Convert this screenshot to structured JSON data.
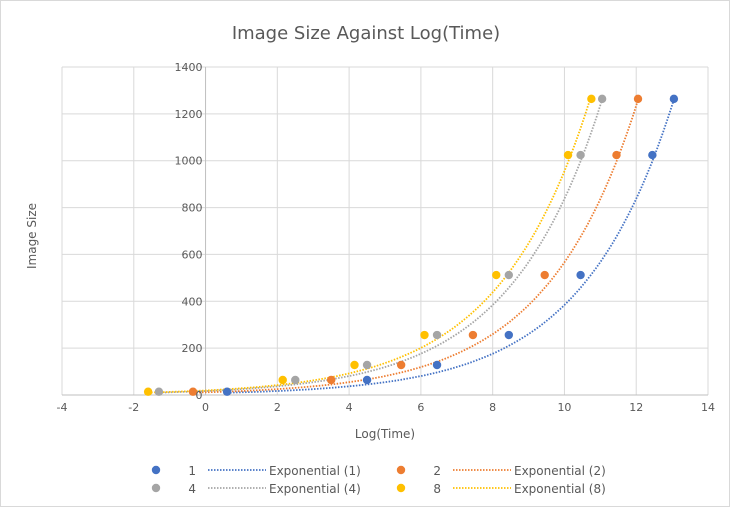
{
  "chart_data": {
    "type": "scatter",
    "title": "Image Size Against Log(Time)",
    "xlabel": "Log(Time)",
    "ylabel": "Image Size",
    "xlim": [
      -4,
      14
    ],
    "ylim": [
      0,
      1400
    ],
    "xticks": [
      -4,
      -2,
      0,
      2,
      4,
      6,
      8,
      10,
      12,
      14
    ],
    "yticks": [
      0,
      200,
      400,
      600,
      800,
      1000,
      1200,
      1400
    ],
    "grid": true,
    "legend_position": "bottom",
    "series": [
      {
        "name": "1",
        "color": "#4472c4",
        "x": [
          0.6,
          4.5,
          6.45,
          8.45,
          10.45,
          12.45,
          13.05
        ],
        "y": [
          14,
          64,
          128,
          256,
          512,
          1024,
          1264
        ],
        "trendline": {
          "name": "Exponential (1)",
          "type": "exponential",
          "a": 7.8,
          "b": 0.3897
        }
      },
      {
        "name": "2",
        "color": "#ed7d31",
        "x": [
          -0.35,
          3.5,
          5.45,
          7.45,
          9.45,
          11.45,
          12.05
        ],
        "y": [
          14,
          64,
          128,
          256,
          512,
          1024,
          1264
        ],
        "trendline": {
          "name": "Exponential (2)",
          "type": "exponential",
          "a": 11.5,
          "b": 0.3897
        }
      },
      {
        "name": "4",
        "color": "#a5a5a5",
        "x": [
          -1.3,
          2.5,
          4.5,
          6.45,
          8.45,
          10.45,
          11.05
        ],
        "y": [
          14,
          64,
          128,
          256,
          512,
          1024,
          1264
        ],
        "trendline": {
          "name": "Exponential (4)",
          "type": "exponential",
          "a": 17.0,
          "b": 0.3897
        }
      },
      {
        "name": "8",
        "color": "#ffc000",
        "x": [
          -1.6,
          2.15,
          4.15,
          6.1,
          8.1,
          10.1,
          10.75
        ],
        "y": [
          14,
          64,
          128,
          256,
          512,
          1024,
          1264
        ],
        "trendline": {
          "name": "Exponential (8)",
          "type": "exponential",
          "a": 19.4,
          "b": 0.3897
        }
      }
    ]
  }
}
